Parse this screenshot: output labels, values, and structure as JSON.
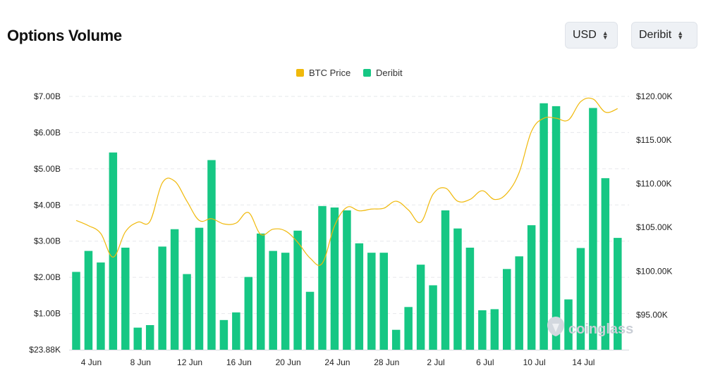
{
  "header": {
    "title": "Options Volume",
    "currency_select": "USD",
    "exchange_select": "Deribit"
  },
  "watermark": {
    "text": "coinglass"
  },
  "colors": {
    "deribit": "#16c784",
    "btc_price": "#f0b90b",
    "grid": "#e6e8eb"
  },
  "chart_data": {
    "type": "bar",
    "legend": [
      "BTC Price",
      "Deribit"
    ],
    "legend_position": "top-center",
    "grid": true,
    "y_left": {
      "ticks": [
        "$23.88K",
        "$1.00B",
        "$2.00B",
        "$3.00B",
        "$4.00B",
        "$5.00B",
        "$6.00B",
        "$7.00B"
      ],
      "range": [
        0,
        7.0
      ]
    },
    "y_right": {
      "ticks": [
        "$95.00K",
        "$100.00K",
        "$105.00K",
        "$110.00K",
        "$115.00K",
        "$120.00K"
      ],
      "range": [
        91000,
        120000
      ]
    },
    "x_tick_labels": [
      "4 Jun",
      "8 Jun",
      "12 Jun",
      "16 Jun",
      "20 Jun",
      "24 Jun",
      "28 Jun",
      "2 Jul",
      "6 Jul",
      "10 Jul",
      "14 Jul"
    ],
    "categories": [
      "3 Jun",
      "4 Jun",
      "5 Jun",
      "6 Jun",
      "7 Jun",
      "8 Jun",
      "9 Jun",
      "10 Jun",
      "11 Jun",
      "12 Jun",
      "13 Jun",
      "14 Jun",
      "15 Jun",
      "16 Jun",
      "17 Jun",
      "18 Jun",
      "19 Jun",
      "20 Jun",
      "21 Jun",
      "22 Jun",
      "23 Jun",
      "24 Jun",
      "25 Jun",
      "26 Jun",
      "27 Jun",
      "28 Jun",
      "29 Jun",
      "30 Jun",
      "1 Jul",
      "2 Jul",
      "3 Jul",
      "4 Jul",
      "5 Jul",
      "6 Jul",
      "7 Jul",
      "8 Jul",
      "9 Jul",
      "10 Jul",
      "11 Jul",
      "12 Jul",
      "13 Jul",
      "14 Jul",
      "15 Jul",
      "16 Jul",
      "17 Jul"
    ],
    "series": [
      {
        "name": "Deribit",
        "type": "bar",
        "axis": "left",
        "values": [
          2.15,
          2.73,
          2.41,
          5.45,
          2.82,
          0.61,
          0.68,
          2.85,
          3.33,
          2.09,
          3.37,
          5.24,
          0.82,
          1.03,
          2.01,
          3.21,
          2.73,
          2.68,
          3.29,
          1.6,
          3.97,
          3.93,
          3.85,
          2.94,
          2.68,
          2.68,
          0.55,
          1.18,
          2.35,
          1.78,
          3.85,
          3.35,
          2.82,
          1.09,
          1.12,
          2.23,
          2.58,
          3.44,
          6.81,
          6.73,
          1.39,
          2.81,
          6.68,
          4.74,
          3.09
        ]
      },
      {
        "name": "BTC Price",
        "type": "line",
        "axis": "right",
        "values": [
          105800,
          105200,
          104300,
          101600,
          104500,
          105600,
          105700,
          110100,
          110300,
          108000,
          105800,
          106000,
          105400,
          105500,
          106700,
          104200,
          104800,
          104600,
          103300,
          101500,
          100900,
          105200,
          107300,
          106900,
          107100,
          107200,
          108000,
          107000,
          105600,
          108800,
          109500,
          108000,
          108200,
          109200,
          108200,
          108900,
          111300,
          116000,
          117500,
          117500,
          117300,
          119400,
          119700,
          118200,
          118600
        ]
      }
    ]
  }
}
